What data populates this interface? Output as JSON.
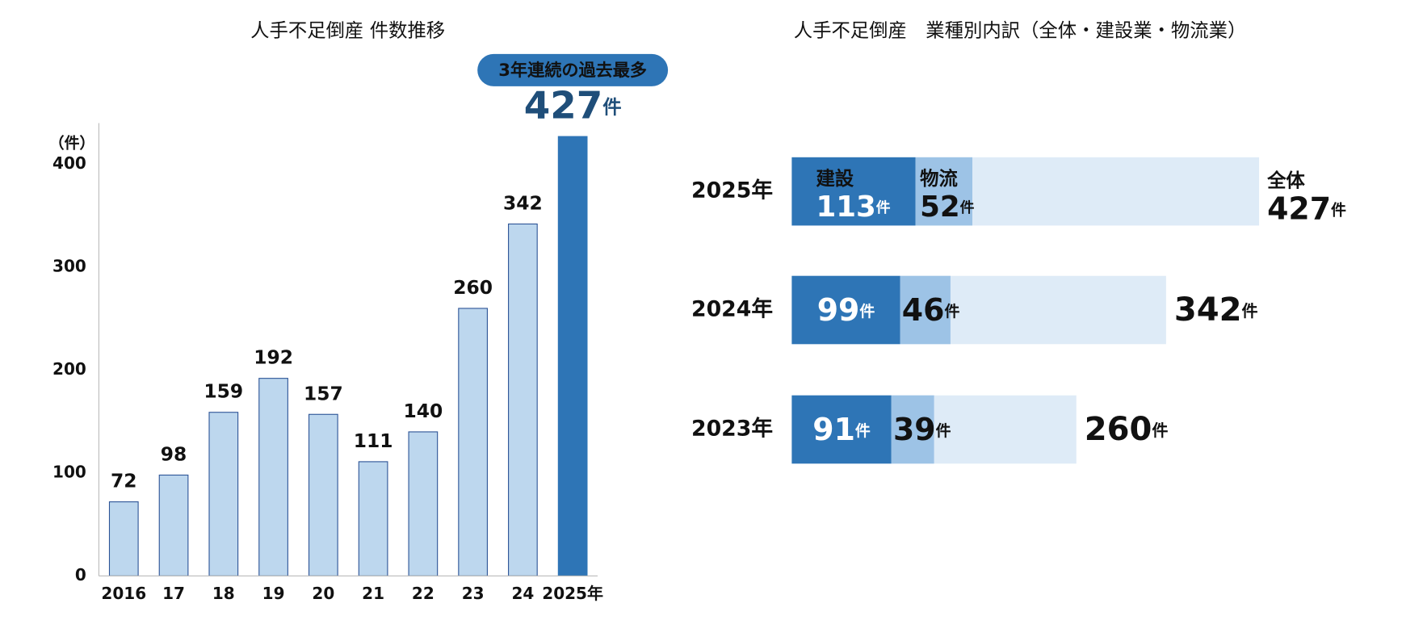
{
  "chart_data": [
    {
      "type": "bar",
      "title": "人手不足倒産 件数推移",
      "y_unit_label": "（件）",
      "categories": [
        "2016",
        "17",
        "18",
        "19",
        "20",
        "21",
        "22",
        "23",
        "24",
        "2025年"
      ],
      "values": [
        72,
        98,
        159,
        192,
        157,
        111,
        140,
        260,
        342,
        427
      ],
      "color": "#bdd7ee",
      "highlight_color": "#2e75b6",
      "highlight_index": 9,
      "annotation": "3年連続の過去最多",
      "value_unit": "件",
      "ylim": [
        0,
        440
      ],
      "yticks": [
        0,
        100,
        200,
        300,
        400
      ]
    },
    {
      "type": "hbar_overlay",
      "title": "人手不足倒産　業種別内訳（全体・建設業・物流業）",
      "categories": [
        "2025年",
        "2024年",
        "2023年"
      ],
      "value_unit": "件",
      "series": [
        {
          "name": "建設",
          "color": "#2e75b6",
          "values": [
            113,
            99,
            91
          ]
        },
        {
          "name": "物流",
          "color": "#9dc3e6",
          "values": [
            52,
            46,
            39
          ]
        },
        {
          "name": "全体",
          "color": "#deebf7",
          "values": [
            427,
            342,
            260
          ]
        }
      ]
    }
  ]
}
